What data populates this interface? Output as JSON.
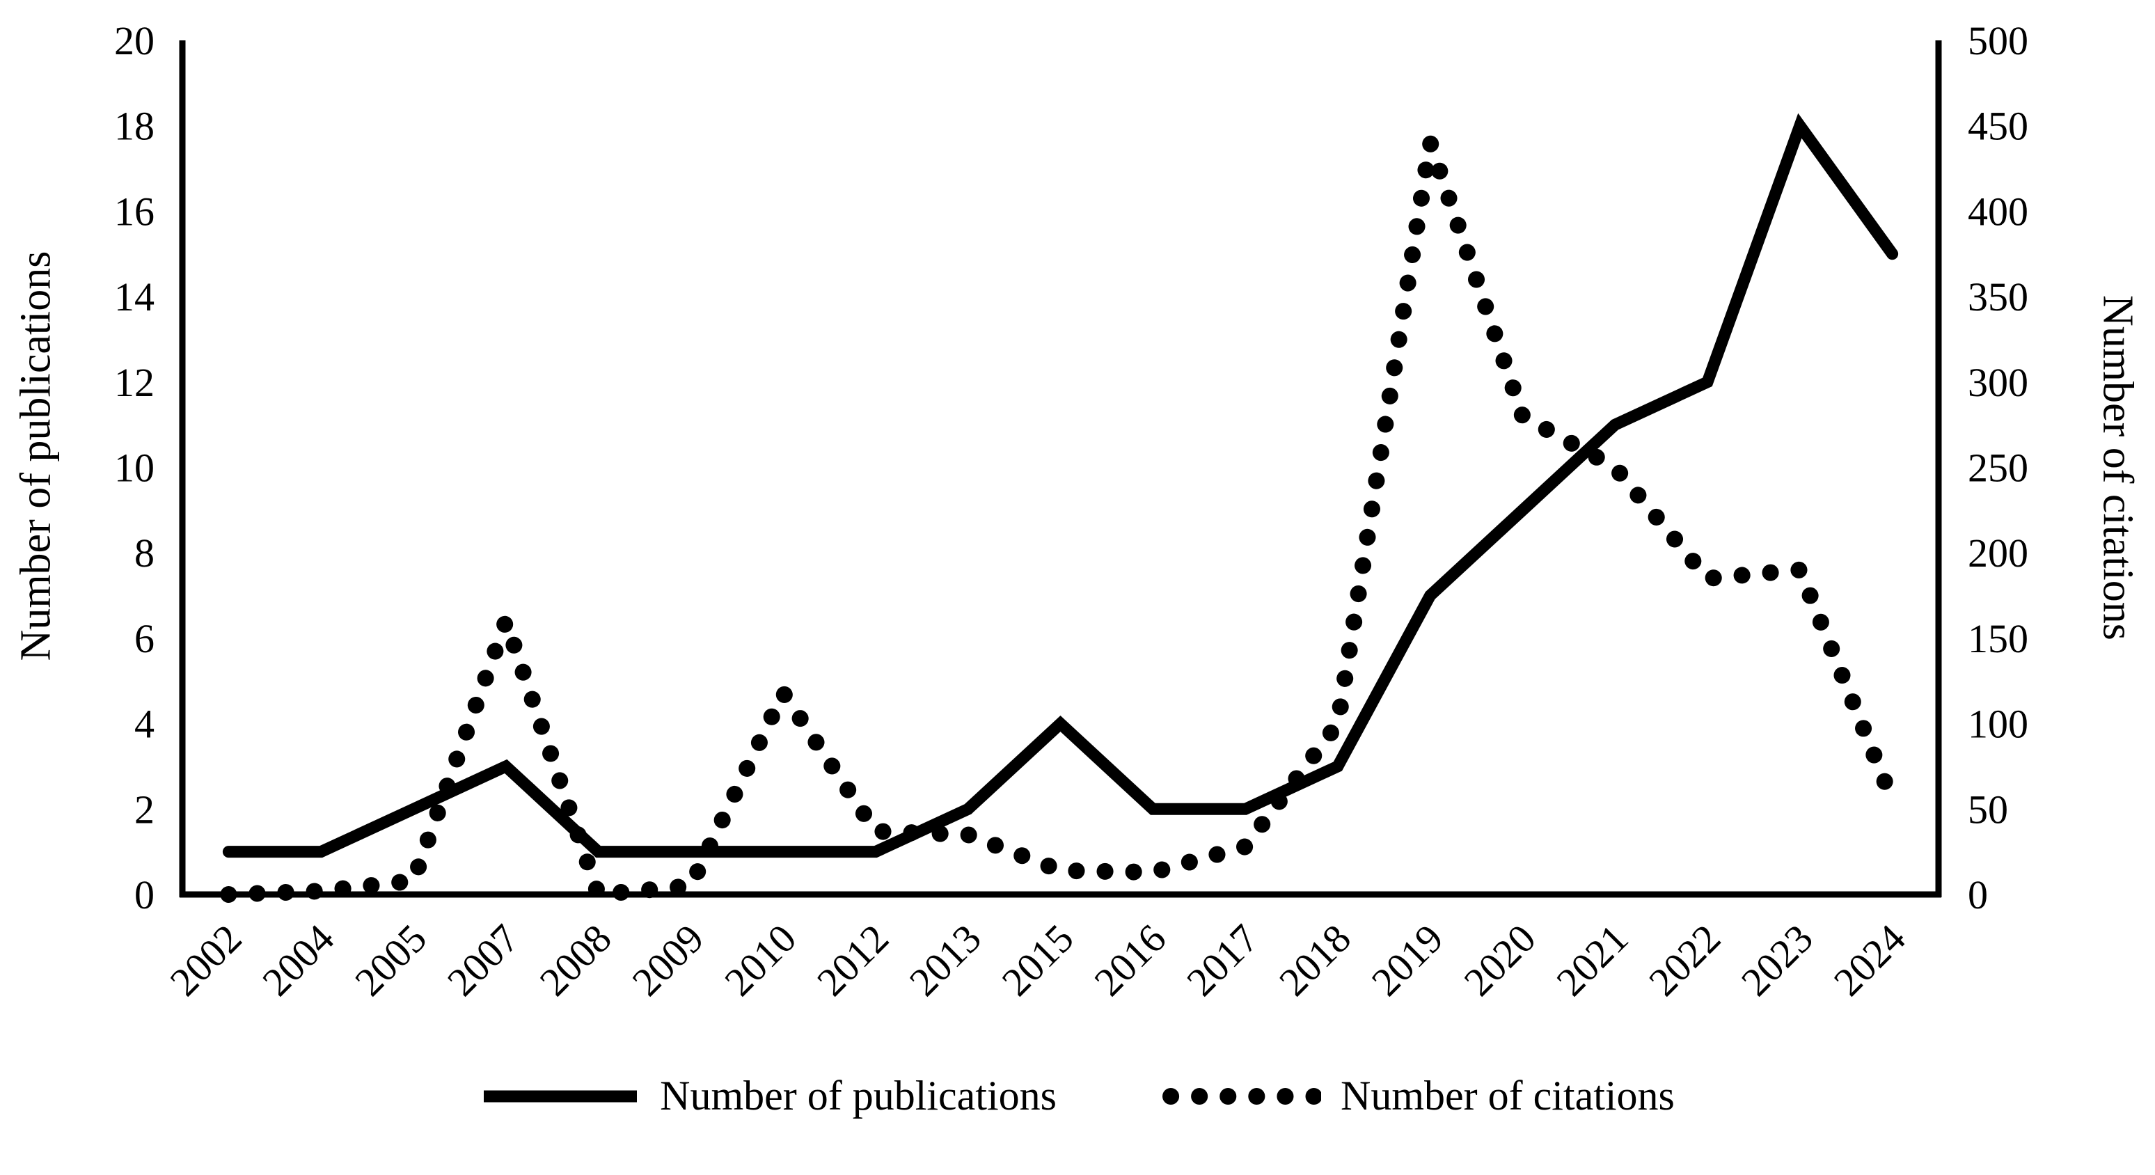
{
  "figure": {
    "background_color": "#ffffff",
    "ink_color": "#000000"
  },
  "chart_data": {
    "type": "line",
    "categories": [
      "2002",
      "2004",
      "2005",
      "2007",
      "2008",
      "2009",
      "2010",
      "2012",
      "2013",
      "2015",
      "2016",
      "2017",
      "2018",
      "2019",
      "2020",
      "2021",
      "2022",
      "2023",
      "2024"
    ],
    "series": [
      {
        "name": "Number of publications",
        "axis": "left",
        "line_style": "solid",
        "values": [
          1,
          1,
          2,
          3,
          1,
          1,
          1,
          1,
          2,
          4,
          2,
          2,
          3,
          7,
          9,
          11,
          12,
          18,
          15
        ]
      },
      {
        "name": "Number of citations",
        "axis": "right",
        "line_style": "dotted",
        "values": [
          0,
          2,
          8,
          160,
          0,
          5,
          118,
          37,
          35,
          14,
          13,
          28,
          100,
          440,
          280,
          250,
          185,
          190,
          55
        ]
      }
    ],
    "left_axis": {
      "title": "Number of publications",
      "min": 0,
      "max": 20,
      "tick_step": 2,
      "ticks": [
        20,
        18,
        16,
        14,
        12,
        10,
        8,
        6,
        4,
        2,
        0
      ]
    },
    "right_axis": {
      "title": "Number of citations",
      "min": 0,
      "max": 500,
      "tick_step": 50,
      "ticks": [
        500,
        450,
        400,
        350,
        300,
        250,
        200,
        150,
        100,
        50,
        0
      ]
    },
    "x_axis": {
      "tick_rotation_deg": -45
    },
    "grid": false,
    "legend": {
      "position": "bottom",
      "entries": [
        {
          "label": "Number of publications",
          "style": "solid"
        },
        {
          "label": "Number of citations",
          "style": "dotted"
        }
      ]
    }
  }
}
